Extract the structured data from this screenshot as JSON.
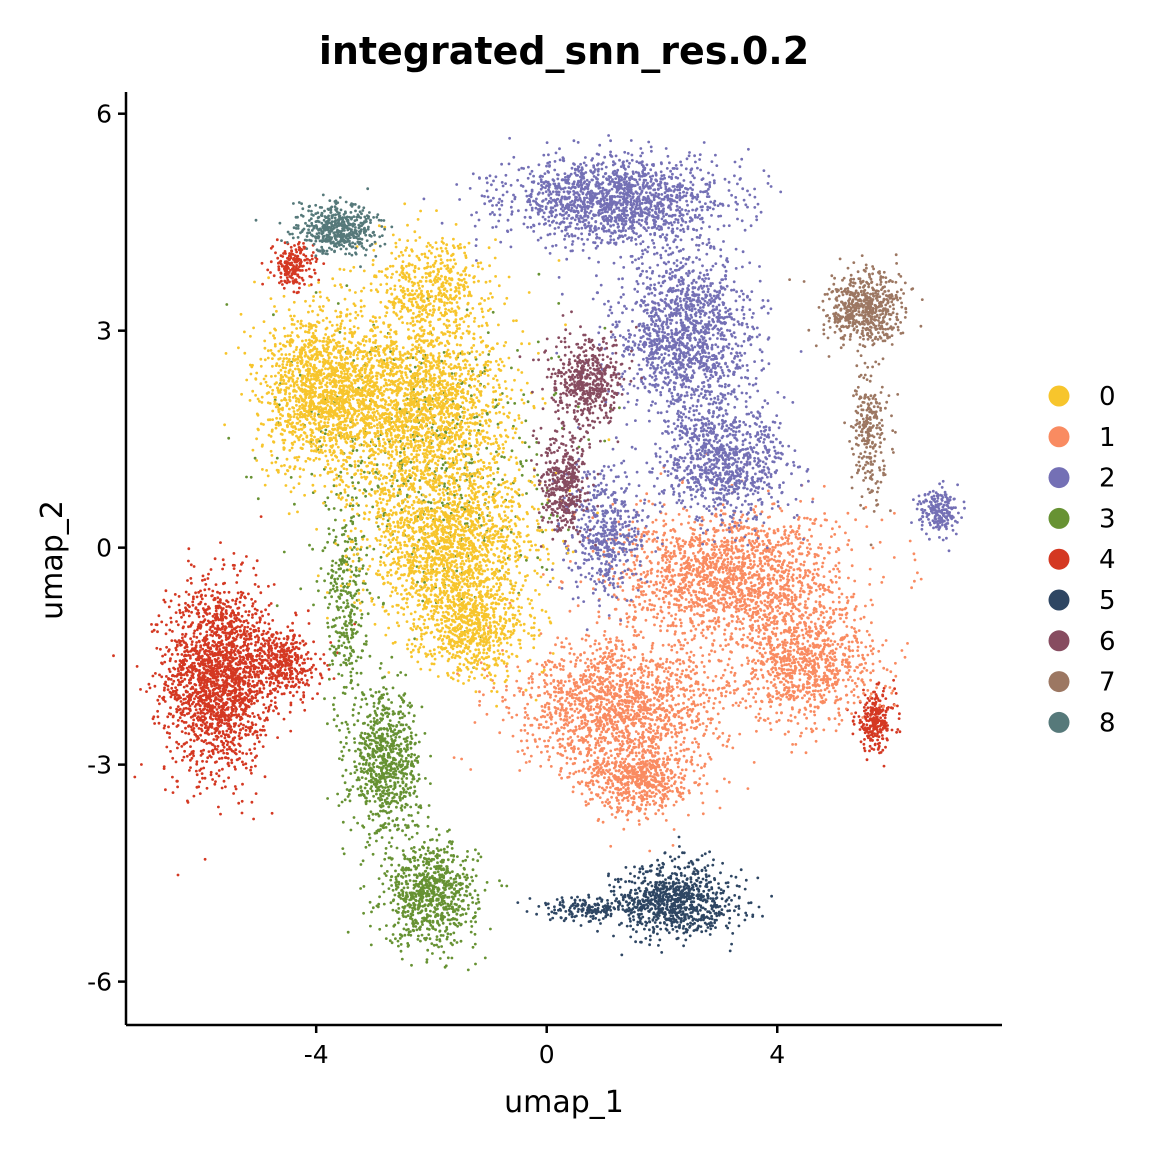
{
  "chart_data": {
    "type": "scatter",
    "title": "integrated_snn_res.0.2",
    "xlabel": "umap_1",
    "ylabel": "umap_2",
    "xlim": [
      -7.3,
      7.9
    ],
    "ylim": [
      -6.6,
      6.3
    ],
    "xticks": [
      -4,
      0,
      4
    ],
    "xtick_labels": [
      "-4",
      "0",
      "4"
    ],
    "yticks": [
      6,
      3,
      0,
      -3,
      -6
    ],
    "ytick_labels": [
      "6",
      "3",
      "0",
      "-3",
      "-6"
    ],
    "grid": false,
    "legend_placement": "right",
    "series": [
      {
        "name": "0",
        "color": "#F7C52C",
        "clusters": [
          {
            "cx": -3.9,
            "cy": 2.2,
            "rx": 1.1,
            "ry": 1.1,
            "n": 1400
          },
          {
            "cx": -2.3,
            "cy": 1.9,
            "rx": 1.6,
            "ry": 1.3,
            "n": 2200
          },
          {
            "cx": -1.7,
            "cy": 0.0,
            "rx": 1.4,
            "ry": 1.1,
            "n": 1700
          },
          {
            "cx": -1.3,
            "cy": -1.1,
            "rx": 1.0,
            "ry": 0.7,
            "n": 700
          },
          {
            "cx": -2.0,
            "cy": 3.6,
            "rx": 1.0,
            "ry": 0.7,
            "n": 500
          }
        ]
      },
      {
        "name": "1",
        "color": "#F98B61",
        "clusters": [
          {
            "cx": 3.2,
            "cy": -0.4,
            "rx": 2.0,
            "ry": 0.9,
            "n": 1800
          },
          {
            "cx": 1.3,
            "cy": -2.2,
            "rx": 1.8,
            "ry": 0.9,
            "n": 1600
          },
          {
            "cx": 4.5,
            "cy": -1.6,
            "rx": 1.2,
            "ry": 0.8,
            "n": 900
          },
          {
            "cx": 1.6,
            "cy": -3.2,
            "rx": 0.9,
            "ry": 0.5,
            "n": 600
          }
        ]
      },
      {
        "name": "2",
        "color": "#7470B5",
        "clusters": [
          {
            "cx": 1.2,
            "cy": 4.8,
            "rx": 1.9,
            "ry": 0.6,
            "n": 1600
          },
          {
            "cx": 2.4,
            "cy": 2.9,
            "rx": 1.2,
            "ry": 1.2,
            "n": 1400
          },
          {
            "cx": 3.1,
            "cy": 1.2,
            "rx": 1.1,
            "ry": 0.8,
            "n": 900
          },
          {
            "cx": 1.0,
            "cy": 0.2,
            "rx": 0.7,
            "ry": 0.9,
            "n": 500
          },
          {
            "cx": 6.8,
            "cy": 0.5,
            "rx": 0.35,
            "ry": 0.3,
            "n": 200
          }
        ]
      },
      {
        "name": "3",
        "color": "#679233",
        "clusters": [
          {
            "cx": -2.8,
            "cy": -3.0,
            "rx": 0.6,
            "ry": 1.0,
            "n": 800
          },
          {
            "cx": -2.0,
            "cy": -4.8,
            "rx": 0.8,
            "ry": 0.7,
            "n": 800
          },
          {
            "cx": -3.5,
            "cy": -0.8,
            "rx": 0.35,
            "ry": 1.4,
            "n": 300
          },
          {
            "cx": -2.0,
            "cy": 1.2,
            "rx": 2.2,
            "ry": 2.0,
            "n": 500
          }
        ]
      },
      {
        "name": "4",
        "color": "#D43822",
        "clusters": [
          {
            "cx": -5.7,
            "cy": -1.8,
            "rx": 0.9,
            "ry": 1.3,
            "n": 2000
          },
          {
            "cx": -4.6,
            "cy": -1.6,
            "rx": 0.7,
            "ry": 0.5,
            "n": 400
          },
          {
            "cx": -4.4,
            "cy": 3.9,
            "rx": 0.35,
            "ry": 0.3,
            "n": 200
          },
          {
            "cx": 5.7,
            "cy": -2.4,
            "rx": 0.35,
            "ry": 0.4,
            "n": 250
          }
        ]
      },
      {
        "name": "5",
        "color": "#2E4663",
        "clusters": [
          {
            "cx": 2.2,
            "cy": -4.9,
            "rx": 1.0,
            "ry": 0.5,
            "n": 900
          },
          {
            "cx": 0.6,
            "cy": -5.0,
            "rx": 0.8,
            "ry": 0.15,
            "n": 150
          }
        ]
      },
      {
        "name": "6",
        "color": "#874C60",
        "clusters": [
          {
            "cx": 0.7,
            "cy": 2.3,
            "rx": 0.6,
            "ry": 0.6,
            "n": 500
          },
          {
            "cx": 0.3,
            "cy": 0.9,
            "rx": 0.4,
            "ry": 0.7,
            "n": 400
          }
        ]
      },
      {
        "name": "7",
        "color": "#9C7762",
        "clusters": [
          {
            "cx": 5.5,
            "cy": 3.3,
            "rx": 0.7,
            "ry": 0.5,
            "n": 600
          },
          {
            "cx": 5.6,
            "cy": 1.6,
            "rx": 0.3,
            "ry": 0.9,
            "n": 250
          }
        ]
      },
      {
        "name": "8",
        "color": "#56797A",
        "clusters": [
          {
            "cx": -3.6,
            "cy": 4.4,
            "rx": 0.7,
            "ry": 0.35,
            "n": 500
          }
        ]
      }
    ]
  }
}
